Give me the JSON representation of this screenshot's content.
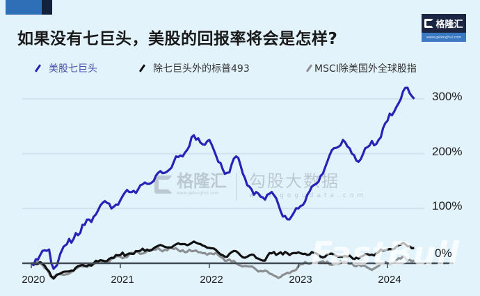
{
  "header": {
    "title": "如果没有七巨头，美股的回报率将会是怎样?",
    "brand_name": "格隆汇",
    "brand_url": "www.gelonghui.com"
  },
  "watermarks": {
    "gelonghui_name": "格隆汇",
    "gelonghui_url": "www.gelonghui.com",
    "gogudata_name": "勾股大数据",
    "gogudata_url": "www.gogudata.com",
    "fastbull": "FastBull"
  },
  "colors": {
    "background": "#e3f3fc",
    "mag7": "#2a22b8",
    "sp493": "#111111",
    "msci": "#8c8f92",
    "grid": "#cfe3ee",
    "axis": "#3f4a52"
  },
  "chart_data": {
    "type": "line",
    "title": "如果没有七巨头，美股的回报率将会是怎样?",
    "xlabel": "",
    "ylabel": "",
    "x_ticks": [
      "2020",
      "2021",
      "2022",
      "2023",
      "2024"
    ],
    "y_ticks": [
      "0%",
      "100%",
      "200%",
      "300%"
    ],
    "y_axis_position": "right",
    "ylim": [
      -30,
      330
    ],
    "grid": true,
    "legend_position": "top",
    "legend": [
      "美股七巨头",
      "除七巨头外的标普493",
      "MSCI除美国外全球股指"
    ],
    "x": [
      2020.0,
      2020.1,
      2020.2,
      2020.25,
      2020.4,
      2020.5,
      2020.6,
      2020.7,
      2020.8,
      2020.9,
      2021.0,
      2021.1,
      2021.2,
      2021.3,
      2021.4,
      2021.5,
      2021.6,
      2021.7,
      2021.8,
      2021.9,
      2022.0,
      2022.1,
      2022.2,
      2022.3,
      2022.4,
      2022.5,
      2022.6,
      2022.7,
      2022.8,
      2022.9,
      2023.0,
      2023.1,
      2023.2,
      2023.3,
      2023.4,
      2023.5,
      2023.6,
      2023.7,
      2023.8,
      2023.9,
      2024.0,
      2024.1,
      2024.2,
      2024.3
    ],
    "series": [
      {
        "name": "美股七巨头",
        "values": [
          0,
          15,
          25,
          -10,
          35,
          55,
          70,
          85,
          110,
          100,
          115,
          130,
          135,
          145,
          160,
          165,
          185,
          195,
          230,
          220,
          225,
          185,
          165,
          195,
          155,
          125,
          120,
          130,
          95,
          80,
          100,
          125,
          145,
          175,
          210,
          225,
          200,
          190,
          215,
          225,
          260,
          285,
          320,
          300
        ],
        "color": "#2a22b8"
      },
      {
        "name": "除七巨头外的标普493",
        "values": [
          0,
          2,
          -15,
          -28,
          -15,
          -8,
          -5,
          0,
          5,
          10,
          15,
          18,
          22,
          25,
          30,
          30,
          32,
          35,
          37,
          35,
          28,
          20,
          12,
          22,
          10,
          15,
          5,
          18,
          20,
          15,
          20,
          15,
          18,
          12,
          15,
          12,
          10,
          12,
          15,
          20,
          25,
          30,
          35,
          28
        ],
        "color": "#111111"
      },
      {
        "name": "MSCI除美国外全球股指",
        "values": [
          0,
          0,
          -18,
          -25,
          -20,
          -10,
          -5,
          -2,
          2,
          8,
          12,
          16,
          20,
          22,
          25,
          25,
          26,
          24,
          22,
          20,
          18,
          15,
          5,
          0,
          -5,
          -8,
          -15,
          -20,
          -25,
          -18,
          -5,
          0,
          2,
          0,
          -2,
          2,
          0,
          -5,
          -10,
          -5,
          0,
          5,
          10,
          5
        ],
        "color": "#8c8f92"
      }
    ]
  }
}
